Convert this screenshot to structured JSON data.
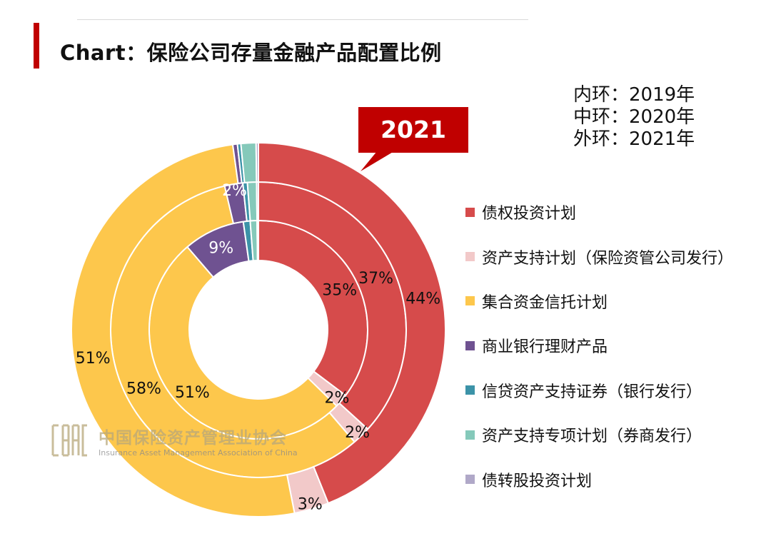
{
  "title": "Chart：保险公司存量金融产品配置比例",
  "ring_key": [
    "内环：2019年",
    "中环：2020年",
    "外环：2021年"
  ],
  "callout": "2021",
  "watermark": {
    "cn": "中国保险资产管理业协会",
    "en": "Insurance Asset Management Association of China"
  },
  "chart_data": {
    "type": "pie",
    "variant": "nested-donut",
    "rings": [
      "2019",
      "2020",
      "2021"
    ],
    "categories": [
      "债权投资计划",
      "资产支持计划（保险资管公司发行）",
      "集合资金信托计划",
      "商业银行理财产品",
      "信贷资产支持证券（银行发行）",
      "资产支持专项计划（券商发行）",
      "债转股投资计划"
    ],
    "colors": [
      "#d64b4b",
      "#f2c9c9",
      "#fdc74c",
      "#6f5291",
      "#3c93a8",
      "#85c9ba",
      "#b0a8c8"
    ],
    "series": [
      {
        "name": "2019",
        "values": [
          35,
          2,
          51,
          9,
          1,
          1,
          0.2
        ],
        "labels": [
          "35%",
          "2%",
          "51%",
          "9%",
          "",
          "",
          ""
        ]
      },
      {
        "name": "2020",
        "values": [
          37,
          2,
          58,
          2,
          0.5,
          1,
          0.2
        ],
        "labels": [
          "37%",
          "2%",
          "58%",
          "2%",
          "",
          "",
          ""
        ]
      },
      {
        "name": "2021",
        "values": [
          44,
          3,
          51,
          0.4,
          0.3,
          1.3,
          0.2
        ],
        "labels": [
          "44%",
          "3%",
          "51%",
          "",
          "",
          "",
          ""
        ]
      }
    ],
    "legend_position": "right"
  }
}
